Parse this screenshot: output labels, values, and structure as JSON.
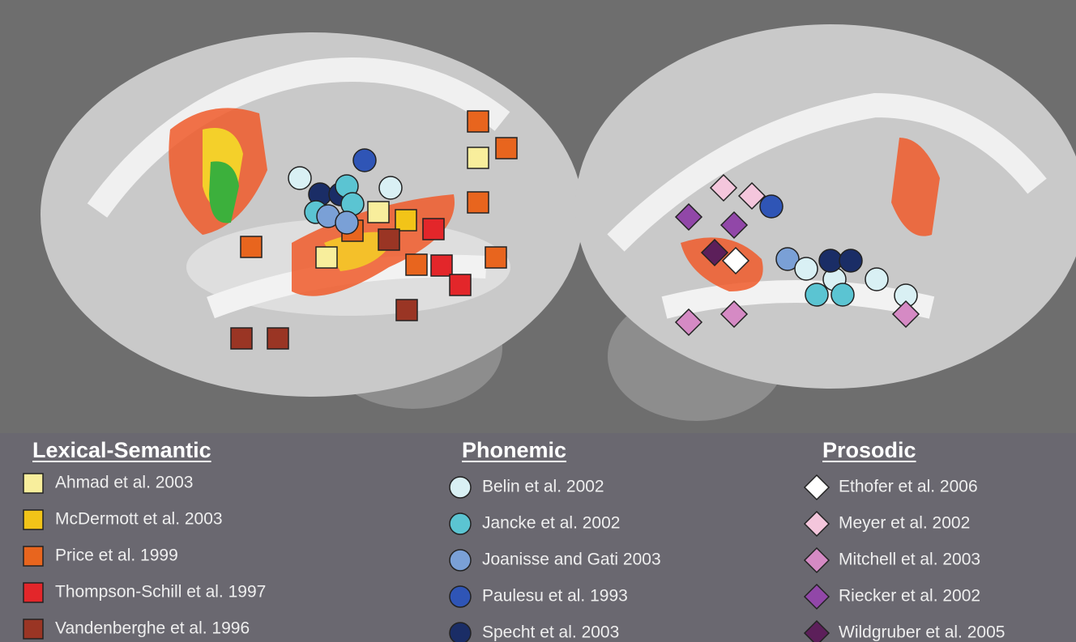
{
  "legend": [
    {
      "title": "Lexical-Semantic",
      "shape": "square",
      "items": [
        {
          "label": "Ahmad et al. 2003",
          "color": "#f8ee9c"
        },
        {
          "label": "McDermott et al. 2003",
          "color": "#f2c418"
        },
        {
          "label": "Price et al. 1999",
          "color": "#e8651e"
        },
        {
          "label": "Thompson-Schill et al. 1997",
          "color": "#e3262a"
        },
        {
          "label": "Vandenberghe et al. 1996",
          "color": "#9a3524"
        }
      ]
    },
    {
      "title": "Phonemic",
      "shape": "circle",
      "items": [
        {
          "label": "Belin et al. 2002",
          "color": "#d9f0f4"
        },
        {
          "label": "Jancke et al. 2002",
          "color": "#5bc4d2"
        },
        {
          "label": "Joanisse and Gati 2003",
          "color": "#7aa0d6"
        },
        {
          "label": "Paulesu et al. 1993",
          "color": "#2f55b6"
        },
        {
          "label": "Specht et al. 2003",
          "color": "#1a2d66"
        }
      ]
    },
    {
      "title": "Prosodic",
      "shape": "diamond",
      "items": [
        {
          "label": "Ethofer et al. 2006",
          "color": "#ffffff"
        },
        {
          "label": "Meyer et al. 2002",
          "color": "#f4c6dc"
        },
        {
          "label": "Mitchell et al. 2003",
          "color": "#d58ac4"
        },
        {
          "label": "Riecker et al. 2002",
          "color": "#9147a8"
        },
        {
          "label": "Wildgruber et al. 2005",
          "color": "#5c1f5a"
        }
      ]
    }
  ]
}
